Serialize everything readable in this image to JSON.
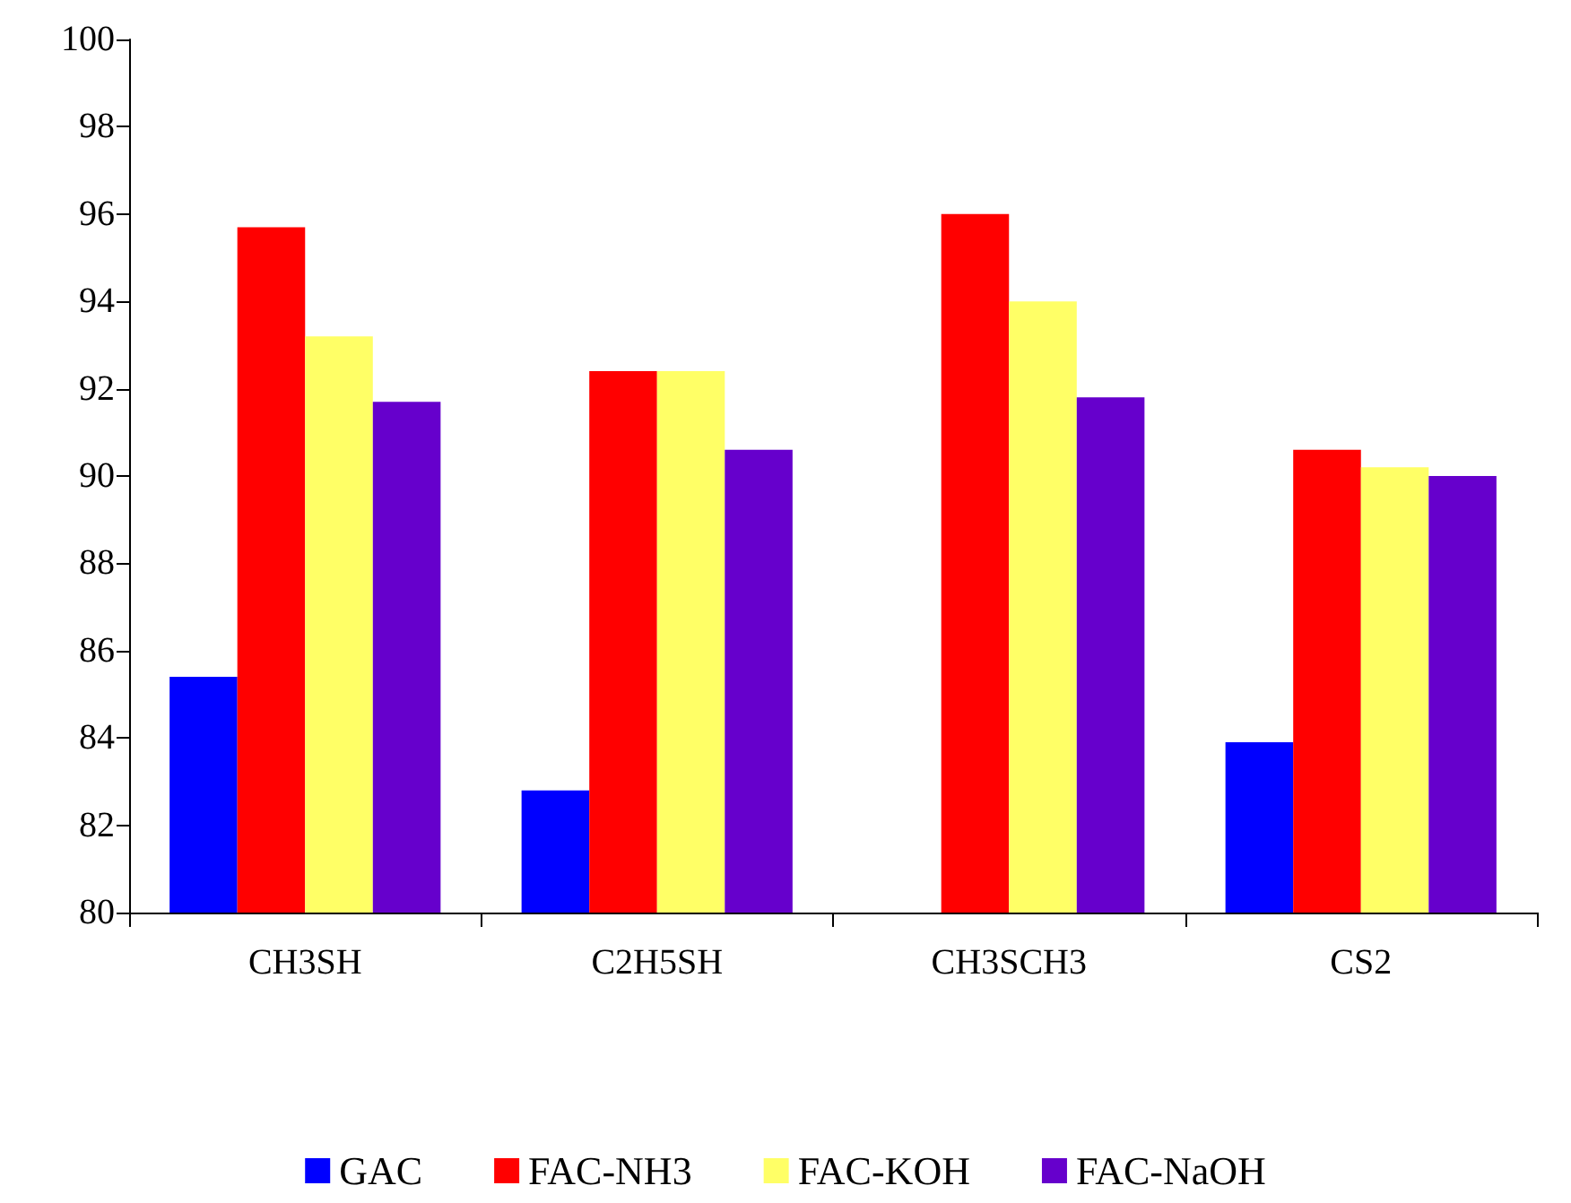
{
  "chart_data": {
    "type": "bar",
    "categories": [
      "CH3SH",
      "C2H5SH",
      "CH3SCH3",
      "CS2"
    ],
    "series": [
      {
        "name": "GAC",
        "color": "#0000ff",
        "values": [
          85.4,
          82.8,
          null,
          83.9
        ]
      },
      {
        "name": "FAC-NH3",
        "color": "#ff0000",
        "values": [
          95.7,
          92.4,
          96.0,
          90.6
        ]
      },
      {
        "name": "FAC-KOH",
        "color": "#ffff66",
        "values": [
          93.2,
          92.4,
          94.0,
          90.2
        ]
      },
      {
        "name": "FAC-NaOH",
        "color": "#6600cc",
        "values": [
          91.7,
          90.6,
          91.8,
          90.0
        ]
      }
    ],
    "ylim": [
      80,
      100
    ],
    "yticks": [
      80,
      82,
      84,
      86,
      88,
      90,
      92,
      94,
      96,
      98,
      100
    ],
    "grid": false,
    "legend": "bottom"
  }
}
